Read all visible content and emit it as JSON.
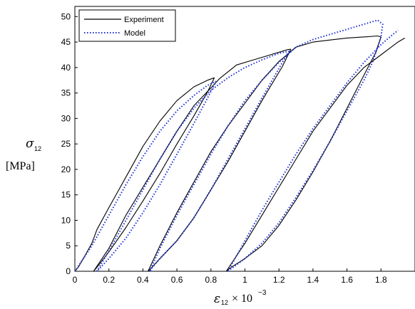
{
  "chart_data": {
    "type": "line",
    "title": "",
    "xlabel": {
      "symbol": "ε",
      "subscript": "12",
      "suffix": "× 10",
      "exponent": "−3"
    },
    "ylabel": {
      "symbol": "σ",
      "subscript": "12",
      "unit": "[MPa]"
    },
    "xlim": [
      0,
      2.0
    ],
    "ylim": [
      0,
      52
    ],
    "x_ticks": [
      "0",
      "0.2",
      "0.4",
      "0.6",
      "0.8",
      "1",
      "1.2",
      "1.4",
      "1.6",
      "1.8"
    ],
    "y_ticks": [
      "0",
      "5",
      "10",
      "15",
      "20",
      "25",
      "30",
      "35",
      "40",
      "45",
      "50"
    ],
    "grid": false,
    "legend_position": "top-left",
    "series": [
      {
        "name": "Experiment",
        "style": "solid",
        "color": "#000000",
        "segments": [
          [
            [
              0.0,
              0
            ],
            [
              0.02,
              0.8
            ],
            [
              0.05,
              2.5
            ],
            [
              0.1,
              5.5
            ],
            [
              0.13,
              8.2
            ],
            [
              0.2,
              12.5
            ],
            [
              0.3,
              18.5
            ],
            [
              0.4,
              24.5
            ],
            [
              0.5,
              29.5
            ],
            [
              0.6,
              33.5
            ],
            [
              0.7,
              36.2
            ],
            [
              0.78,
              37.5
            ],
            [
              0.82,
              38.0
            ]
          ],
          [
            [
              0.82,
              38.0
            ],
            [
              0.78,
              35.2
            ],
            [
              0.7,
              30.5
            ],
            [
              0.6,
              25.0
            ],
            [
              0.5,
              19.2
            ],
            [
              0.4,
              13.8
            ],
            [
              0.3,
              8.6
            ],
            [
              0.2,
              3.8
            ],
            [
              0.13,
              0.8
            ],
            [
              0.11,
              0
            ]
          ],
          [
            [
              0.11,
              0
            ],
            [
              0.2,
              4.5
            ],
            [
              0.3,
              11.0
            ],
            [
              0.4,
              16.5
            ],
            [
              0.5,
              22.0
            ],
            [
              0.6,
              27.5
            ],
            [
              0.7,
              32.5
            ],
            [
              0.8,
              36.0
            ],
            [
              0.85,
              37.8
            ],
            [
              0.95,
              40.5
            ],
            [
              1.05,
              41.5
            ],
            [
              1.15,
              42.5
            ],
            [
              1.25,
              43.5
            ],
            [
              1.27,
              43.6
            ]
          ],
          [
            [
              1.27,
              43.6
            ],
            [
              1.22,
              40.2
            ],
            [
              1.1,
              33.5
            ],
            [
              1.0,
              27.5
            ],
            [
              0.9,
              21.5
            ],
            [
              0.8,
              16.0
            ],
            [
              0.7,
              10.5
            ],
            [
              0.6,
              6.0
            ],
            [
              0.5,
              2.5
            ],
            [
              0.44,
              0.3
            ],
            [
              0.43,
              0
            ]
          ],
          [
            [
              0.43,
              0
            ],
            [
              0.5,
              5.0
            ],
            [
              0.6,
              11.5
            ],
            [
              0.7,
              17.5
            ],
            [
              0.8,
              23.5
            ],
            [
              0.9,
              28.5
            ],
            [
              1.0,
              33.0
            ],
            [
              1.1,
              37.5
            ],
            [
              1.2,
              41.2
            ],
            [
              1.3,
              44.0
            ],
            [
              1.4,
              45.0
            ],
            [
              1.5,
              45.4
            ],
            [
              1.6,
              45.8
            ],
            [
              1.7,
              46.0
            ],
            [
              1.78,
              46.2
            ],
            [
              1.8,
              46.0
            ]
          ],
          [
            [
              1.8,
              46.0
            ],
            [
              1.77,
              43.0
            ],
            [
              1.7,
              38.5
            ],
            [
              1.6,
              32.0
            ],
            [
              1.5,
              25.5
            ],
            [
              1.4,
              19.5
            ],
            [
              1.3,
              14.0
            ],
            [
              1.2,
              9.0
            ],
            [
              1.1,
              5.0
            ],
            [
              1.0,
              2.5
            ],
            [
              0.92,
              0.8
            ],
            [
              0.89,
              0
            ]
          ],
          [
            [
              0.89,
              0
            ],
            [
              1.0,
              5.5
            ],
            [
              1.1,
              11.0
            ],
            [
              1.2,
              16.5
            ],
            [
              1.3,
              22.0
            ],
            [
              1.4,
              27.5
            ],
            [
              1.5,
              32.0
            ],
            [
              1.6,
              36.5
            ],
            [
              1.7,
              40.0
            ],
            [
              1.8,
              42.5
            ],
            [
              1.86,
              44.0
            ],
            [
              1.9,
              45.0
            ],
            [
              1.94,
              45.8
            ]
          ]
        ]
      },
      {
        "name": "Model",
        "style": "dotted",
        "color": "#1a2fd6",
        "segments": [
          [
            [
              0.0,
              0
            ],
            [
              0.1,
              5.0
            ],
            [
              0.2,
              11.0
            ],
            [
              0.3,
              17.0
            ],
            [
              0.4,
              22.5
            ],
            [
              0.5,
              27.5
            ],
            [
              0.6,
              31.5
            ],
            [
              0.7,
              34.5
            ],
            [
              0.78,
              36.5
            ],
            [
              0.83,
              37.3
            ]
          ],
          [
            [
              0.83,
              37.3
            ],
            [
              0.78,
              34.0
            ],
            [
              0.7,
              29.0
            ],
            [
              0.6,
              23.0
            ],
            [
              0.5,
              17.0
            ],
            [
              0.4,
              11.5
            ],
            [
              0.3,
              6.5
            ],
            [
              0.2,
              2.5
            ],
            [
              0.13,
              0
            ]
          ],
          [
            [
              0.13,
              0
            ],
            [
              0.2,
              4.0
            ],
            [
              0.3,
              10.0
            ],
            [
              0.4,
              16.0
            ],
            [
              0.5,
              22.0
            ],
            [
              0.6,
              27.5
            ],
            [
              0.7,
              32.0
            ],
            [
              0.8,
              35.5
            ],
            [
              0.9,
              38.0
            ],
            [
              1.0,
              40.0
            ],
            [
              1.1,
              41.5
            ],
            [
              1.2,
              42.8
            ],
            [
              1.26,
              43.2
            ]
          ],
          [
            [
              1.26,
              43.2
            ],
            [
              1.22,
              41.0
            ],
            [
              1.1,
              34.0
            ],
            [
              1.0,
              28.0
            ],
            [
              0.9,
              22.0
            ],
            [
              0.8,
              16.0
            ],
            [
              0.7,
              10.5
            ],
            [
              0.6,
              6.0
            ],
            [
              0.5,
              2.5
            ],
            [
              0.45,
              0.5
            ],
            [
              0.44,
              0
            ]
          ],
          [
            [
              0.44,
              0
            ],
            [
              0.5,
              4.5
            ],
            [
              0.6,
              11.0
            ],
            [
              0.7,
              17.0
            ],
            [
              0.8,
              23.0
            ],
            [
              0.9,
              28.5
            ],
            [
              1.0,
              33.5
            ],
            [
              1.1,
              37.5
            ],
            [
              1.2,
              41.0
            ],
            [
              1.3,
              44.0
            ],
            [
              1.4,
              45.5
            ],
            [
              1.5,
              46.5
            ],
            [
              1.6,
              47.5
            ],
            [
              1.7,
              48.5
            ],
            [
              1.78,
              49.3
            ],
            [
              1.81,
              48.5
            ],
            [
              1.8,
              46.0
            ]
          ],
          [
            [
              1.8,
              46.0
            ],
            [
              1.75,
              41.0
            ],
            [
              1.7,
              37.5
            ],
            [
              1.6,
              31.5
            ],
            [
              1.5,
              25.5
            ],
            [
              1.4,
              19.8
            ],
            [
              1.3,
              14.5
            ],
            [
              1.2,
              9.5
            ],
            [
              1.1,
              5.5
            ],
            [
              1.0,
              2.5
            ],
            [
              0.92,
              0.5
            ],
            [
              0.9,
              0
            ]
          ],
          [
            [
              0.9,
              0
            ],
            [
              1.0,
              6.0
            ],
            [
              1.1,
              12.0
            ],
            [
              1.2,
              17.5
            ],
            [
              1.3,
              23.0
            ],
            [
              1.4,
              28.0
            ],
            [
              1.5,
              32.5
            ],
            [
              1.6,
              37.0
            ],
            [
              1.7,
              41.0
            ],
            [
              1.8,
              44.5
            ],
            [
              1.87,
              46.5
            ],
            [
              1.9,
              47.3
            ]
          ]
        ]
      }
    ]
  }
}
